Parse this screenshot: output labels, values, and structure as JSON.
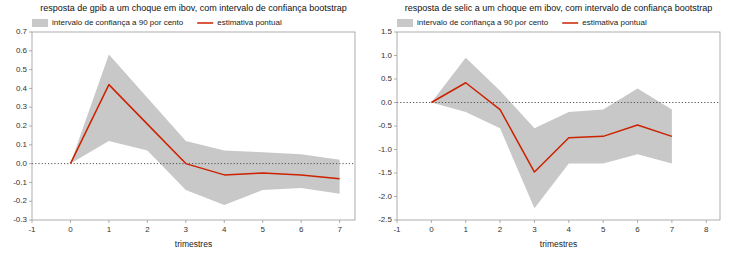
{
  "chart_data": [
    {
      "type": "line",
      "title": "resposta de gpib a um choque em ibov, com intervalo de confiança bootstrap",
      "xlabel": "trimestres",
      "x": [
        0,
        1,
        2,
        3,
        4,
        5,
        6,
        7
      ],
      "series": [
        {
          "name": "intervalo de confiança a 90 por cento",
          "type": "area",
          "color": "#c8c8c8",
          "lower": [
            0.0,
            0.12,
            0.07,
            -0.14,
            -0.22,
            -0.14,
            -0.13,
            -0.16
          ],
          "upper": [
            0.0,
            0.58,
            0.35,
            0.12,
            0.07,
            0.06,
            0.05,
            0.02
          ]
        },
        {
          "name": "estimativa pontual",
          "type": "line",
          "color": "#cc2200",
          "values": [
            0.0,
            0.42,
            0.21,
            0.0,
            -0.06,
            -0.05,
            -0.06,
            -0.08
          ]
        }
      ],
      "reference_lines": [
        {
          "y": 0,
          "color": "#555555",
          "line_style": "dotted"
        }
      ],
      "xlim": [
        -1,
        7.4
      ],
      "ylim": [
        -0.3,
        0.7
      ],
      "xticks": [
        -1,
        0,
        1,
        2,
        3,
        4,
        5,
        6,
        7
      ],
      "yticks": [
        -0.3,
        -0.2,
        -0.1,
        {
          "value": 0.0,
          "label": "0.0"
        },
        0.1,
        0.2,
        0.3,
        0.4,
        0.5,
        0.6,
        0.7
      ],
      "legend": "upper left",
      "grid": false
    },
    {
      "type": "line",
      "title": "resposta de selic a um choque em ibov, com intervalo de confiança bootstrap",
      "xlabel": "trimestres",
      "x": [
        0,
        1,
        2,
        3,
        4,
        5,
        6,
        7
      ],
      "series": [
        {
          "name": "intervalo de confiança a 90 por cento",
          "type": "area",
          "color": "#c8c8c8",
          "lower": [
            0.0,
            -0.2,
            -0.55,
            -2.25,
            -1.3,
            -1.3,
            -1.1,
            -1.3
          ],
          "upper": [
            0.0,
            0.95,
            0.25,
            -0.55,
            -0.2,
            -0.15,
            0.3,
            -0.15
          ]
        },
        {
          "name": "estimativa pontual",
          "type": "line",
          "color": "#cc2200",
          "values": [
            0.0,
            0.42,
            -0.15,
            -1.48,
            -0.75,
            -0.72,
            -0.48,
            -0.72
          ]
        }
      ],
      "reference_lines": [
        {
          "y": 0,
          "color": "#555555",
          "line_style": "dotted"
        }
      ],
      "xlim": [
        -1,
        8.4
      ],
      "ylim": [
        -2.5,
        1.5
      ],
      "xticks": [
        -1,
        0,
        1,
        2,
        3,
        4,
        5,
        6,
        7,
        8
      ],
      "yticks": [
        -2.5,
        {
          "value": -2.0,
          "label": "-2.0"
        },
        -1.5,
        {
          "value": -1.0,
          "label": "-1.0"
        },
        -0.5,
        {
          "value": 0.0,
          "label": "0.0"
        },
        0.5,
        {
          "value": 1.0,
          "label": "1.0"
        },
        1.5
      ],
      "legend": "upper left",
      "grid": false
    }
  ]
}
